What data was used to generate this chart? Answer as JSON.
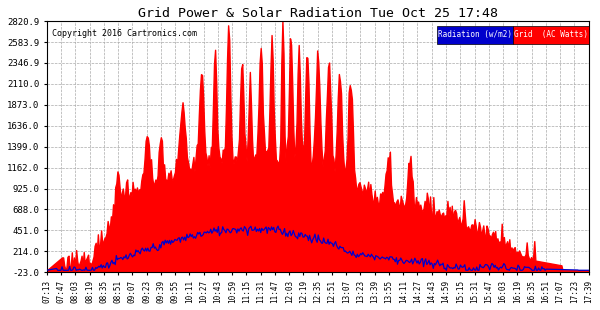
{
  "title": "Grid Power & Solar Radiation Tue Oct 25 17:48",
  "copyright": "Copyright 2016 Cartronics.com",
  "bg_color": "#ffffff",
  "plot_bg_color": "#ffffff",
  "grid_color": "#aaaaaa",
  "fill_color": "#ff0000",
  "line_color": "#0000cc",
  "yticks": [
    -23.0,
    214.0,
    451.0,
    688.0,
    925.0,
    1162.0,
    1399.0,
    1636.0,
    1873.0,
    2110.0,
    2346.9,
    2583.9,
    2820.9
  ],
  "ymin": -23.0,
  "ymax": 2820.9,
  "legend_radiation_color": "#0000cc",
  "legend_grid_color": "#ff0000",
  "xtick_labels": [
    "07:13",
    "07:47",
    "08:03",
    "08:19",
    "08:35",
    "08:51",
    "09:07",
    "09:23",
    "09:39",
    "09:55",
    "10:11",
    "10:27",
    "10:43",
    "10:59",
    "11:15",
    "11:31",
    "11:47",
    "12:03",
    "12:19",
    "12:35",
    "12:51",
    "13:07",
    "13:23",
    "13:39",
    "13:55",
    "14:11",
    "14:27",
    "14:43",
    "14:59",
    "15:15",
    "15:31",
    "15:47",
    "16:03",
    "16:19",
    "16:35",
    "16:51",
    "17:07",
    "17:23",
    "17:39"
  ]
}
